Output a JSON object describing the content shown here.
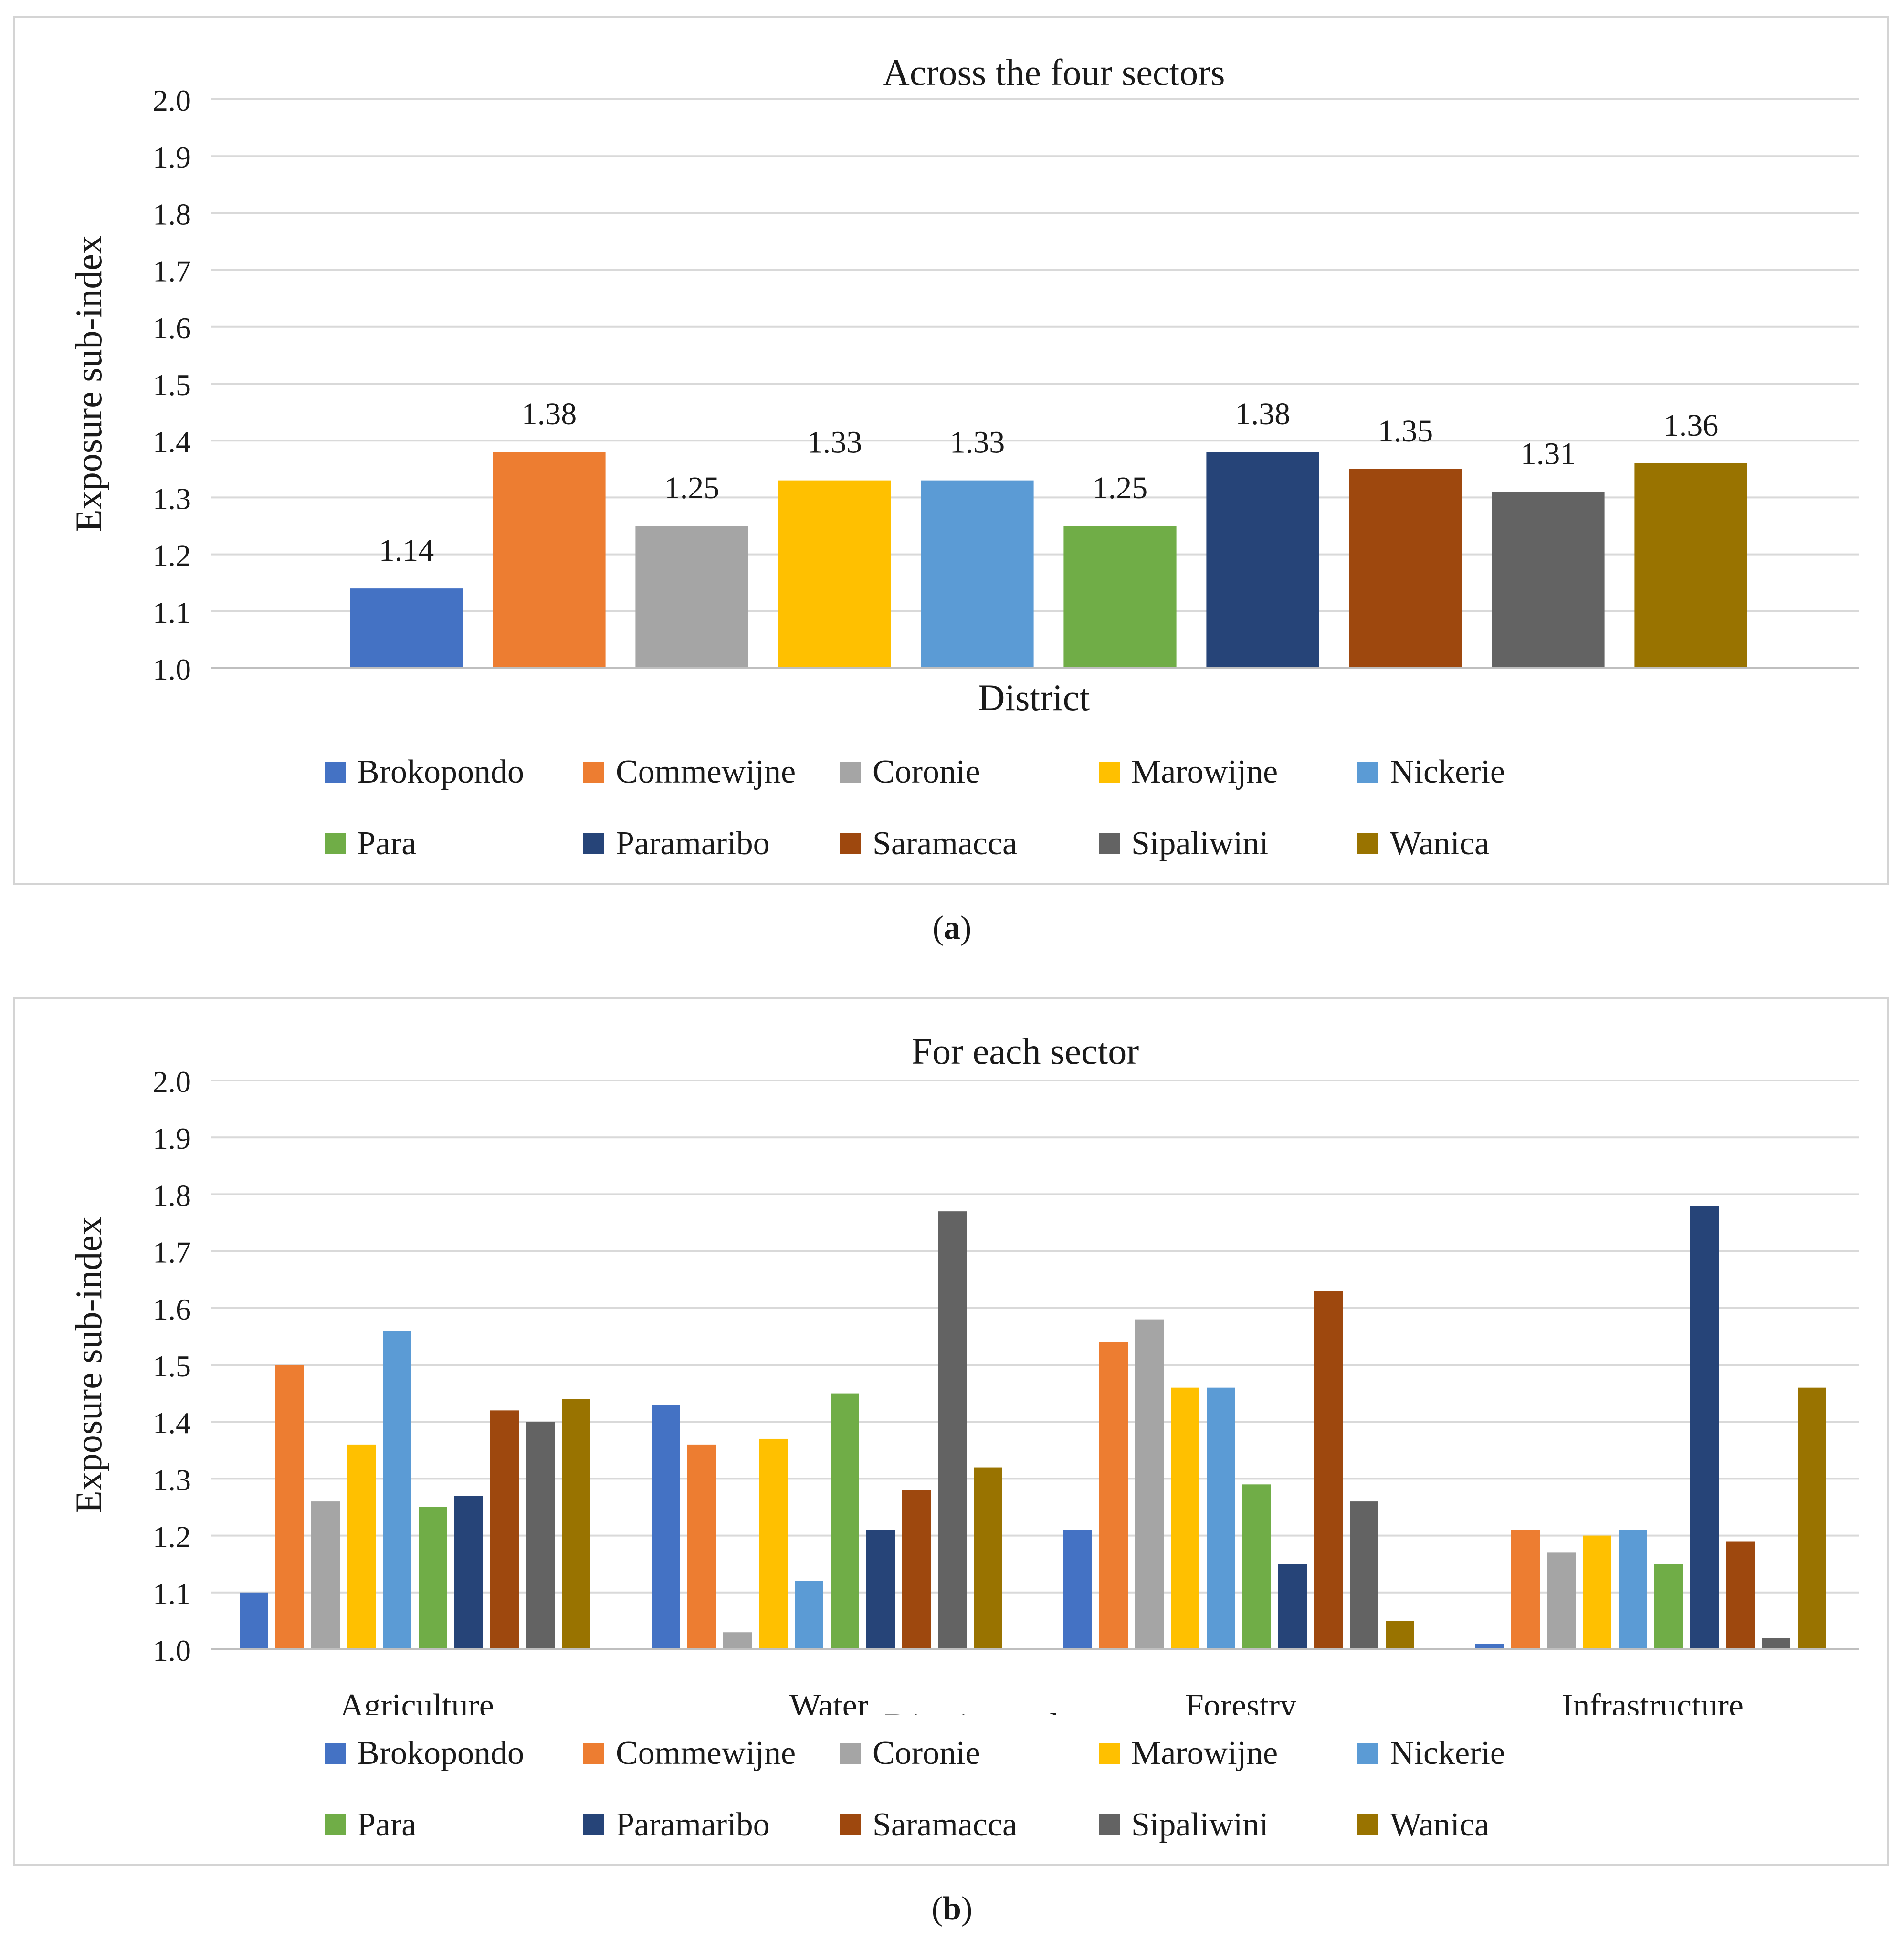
{
  "colors": [
    "#4472C4",
    "#ED7D31",
    "#A5A5A5",
    "#FFC000",
    "#5B9BD5",
    "#70AD47",
    "#264478",
    "#9E480E",
    "#636363",
    "#997300"
  ],
  "chart_data": [
    {
      "type": "bar",
      "title": "Across the four sectors",
      "xlabel": "District",
      "ylabel": "Exposure sub-index",
      "ylim": [
        1.0,
        2.0
      ],
      "yticks": [
        "1.0",
        "1.1",
        "1.2",
        "1.3",
        "1.4",
        "1.5",
        "1.6",
        "1.7",
        "1.8",
        "1.9",
        "2.0"
      ],
      "grid": true,
      "categories": [
        "Brokopondo",
        "Commewijne",
        "Coronie",
        "Marowijne",
        "Nickerie",
        "Para",
        "Paramaribo",
        "Saramacca",
        "Sipaliwini",
        "Wanica"
      ],
      "values": [
        1.14,
        1.38,
        1.25,
        1.33,
        1.33,
        1.25,
        1.38,
        1.35,
        1.31,
        1.36
      ],
      "data_labels": [
        "1.14",
        "1.38",
        "1.25",
        "1.33",
        "1.33",
        "1.25",
        "1.38",
        "1.35",
        "1.31",
        "1.36"
      ],
      "legend": [
        "Brokopondo",
        "Commewijne",
        "Coronie",
        "Marowijne",
        "Nickerie",
        "Para",
        "Paramaribo",
        "Saramacca",
        "Sipaliwini",
        "Wanica"
      ],
      "legend_position": "bottom",
      "panel_label": "a"
    },
    {
      "type": "bar",
      "title": "For each sector",
      "xlabel": "District and sector",
      "ylabel": "Exposure sub-index",
      "ylim": [
        1.0,
        2.0
      ],
      "yticks": [
        "1.0",
        "1.1",
        "1.2",
        "1.3",
        "1.4",
        "1.5",
        "1.6",
        "1.7",
        "1.8",
        "1.9",
        "2.0"
      ],
      "grid": true,
      "categories": [
        "Agriculture",
        "Water",
        "Forestry",
        "Infrastructure"
      ],
      "series": [
        {
          "name": "Brokopondo",
          "values": [
            1.1,
            1.43,
            1.21,
            1.01
          ]
        },
        {
          "name": "Commewijne",
          "values": [
            1.5,
            1.36,
            1.54,
            1.21
          ]
        },
        {
          "name": "Coronie",
          "values": [
            1.26,
            1.03,
            1.58,
            1.17
          ]
        },
        {
          "name": "Marowijne",
          "values": [
            1.36,
            1.37,
            1.46,
            1.2
          ]
        },
        {
          "name": "Nickerie",
          "values": [
            1.56,
            1.12,
            1.46,
            1.21
          ]
        },
        {
          "name": "Para",
          "values": [
            1.25,
            1.45,
            1.29,
            1.15
          ]
        },
        {
          "name": "Paramaribo",
          "values": [
            1.27,
            1.21,
            1.15,
            1.78
          ]
        },
        {
          "name": "Saramacca",
          "values": [
            1.42,
            1.28,
            1.63,
            1.19
          ]
        },
        {
          "name": "Sipaliwini",
          "values": [
            1.4,
            1.77,
            1.26,
            1.02
          ]
        },
        {
          "name": "Wanica",
          "values": [
            1.44,
            1.32,
            1.05,
            1.46
          ]
        }
      ],
      "legend": [
        "Brokopondo",
        "Commewijne",
        "Coronie",
        "Marowijne",
        "Nickerie",
        "Para",
        "Paramaribo",
        "Saramacca",
        "Sipaliwini",
        "Wanica"
      ],
      "legend_position": "bottom",
      "panel_label": "b"
    }
  ]
}
